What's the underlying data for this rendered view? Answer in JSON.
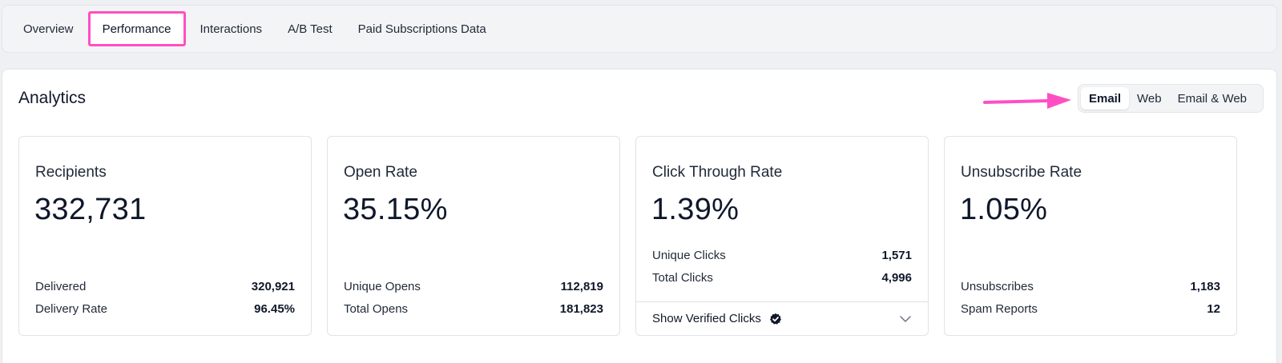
{
  "tabs": [
    {
      "label": "Overview"
    },
    {
      "label": "Performance"
    },
    {
      "label": "Interactions"
    },
    {
      "label": "A/B Test"
    },
    {
      "label": "Paid Subscriptions Data"
    }
  ],
  "analytics": {
    "title": "Analytics",
    "view_toggle": [
      "Email",
      "Web",
      "Email & Web"
    ],
    "selected_view": "Email"
  },
  "cards": [
    {
      "label": "Recipients",
      "value": "332,731",
      "stats": [
        {
          "label": "Delivered",
          "value": "320,921"
        },
        {
          "label": "Delivery Rate",
          "value": "96.45%"
        }
      ]
    },
    {
      "label": "Open Rate",
      "value": "35.15%",
      "stats": [
        {
          "label": "Unique Opens",
          "value": "112,819"
        },
        {
          "label": "Total Opens",
          "value": "181,823"
        }
      ]
    },
    {
      "label": "Click Through Rate",
      "value": "1.39%",
      "stats": [
        {
          "label": "Unique Clicks",
          "value": "1,571"
        },
        {
          "label": "Total Clicks",
          "value": "4,996"
        }
      ],
      "footer": "Show Verified Clicks"
    },
    {
      "label": "Unsubscribe Rate",
      "value": "1.05%",
      "stats": [
        {
          "label": "Unsubscribes",
          "value": "1,183"
        },
        {
          "label": "Spam Reports",
          "value": "12"
        }
      ]
    }
  ],
  "colors": {
    "highlight": "#ff4fc3",
    "accent_dark": "#0f172a"
  },
  "icons": {
    "verified": "verified-check-icon",
    "expand": "chevron-down-icon",
    "annotation": "arrow-right-icon"
  }
}
